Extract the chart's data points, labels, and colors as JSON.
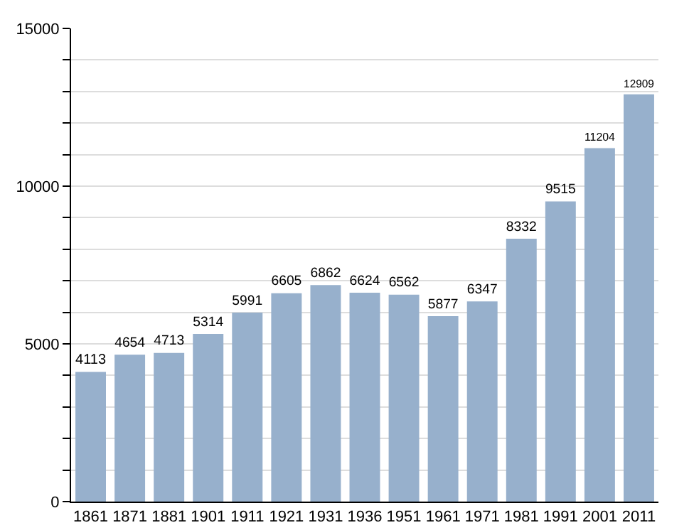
{
  "chart_data": {
    "type": "bar",
    "categories": [
      "1861",
      "1871",
      "1881",
      "1901",
      "1911",
      "1921",
      "1931",
      "1936",
      "1951",
      "1961",
      "1971",
      "1981",
      "1991",
      "2001",
      "2011"
    ],
    "values": [
      4113,
      4654,
      4713,
      5314,
      5991,
      6605,
      6862,
      6624,
      6562,
      5877,
      6347,
      8332,
      9515,
      11204,
      12909
    ],
    "color": "#97b0cc",
    "data_labels": true,
    "grid": "y",
    "ylim": [
      0,
      15000
    ],
    "yticks": [
      0,
      {
        "value": 1000,
        "label": null
      },
      {
        "value": 2000,
        "label": null
      },
      {
        "value": 3000,
        "label": null
      },
      {
        "value": 4000,
        "label": null
      },
      5000,
      {
        "value": 6000,
        "label": null
      },
      {
        "value": 7000,
        "label": null
      },
      {
        "value": 8000,
        "label": null
      },
      {
        "value": 9000,
        "label": null
      },
      10000,
      {
        "value": 11000,
        "label": null
      },
      {
        "value": 12000,
        "label": null
      },
      {
        "value": 13000,
        "label": null
      },
      {
        "value": 14000,
        "label": null
      },
      15000
    ]
  }
}
